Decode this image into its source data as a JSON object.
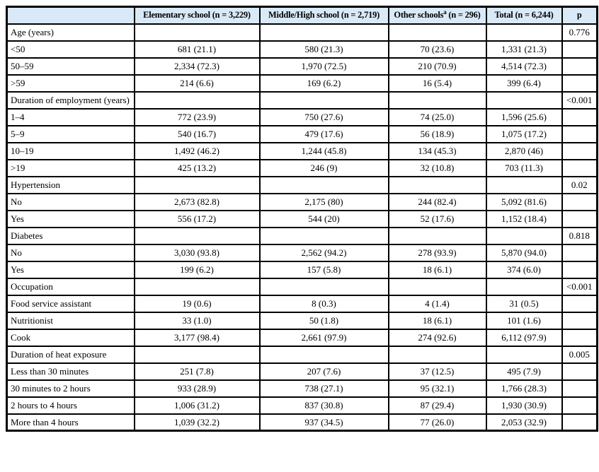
{
  "colors": {
    "header_bg": "#d9e9f8",
    "border_color": "#000000",
    "text_color": "#000000",
    "page_bg": "#ffffff"
  },
  "table": {
    "headers": {
      "empty": "",
      "elementary": "Elementary school (n = 3,229)",
      "middle_high": "Middle/High school (n = 2,719)",
      "other_prefix": "Other schools",
      "other_sup": "a",
      "other_suffix": " (n = 296)",
      "total": "Total (n = 6,244)",
      "p": "p"
    },
    "rows": [
      [
        "Age (years)",
        "",
        "",
        "",
        "",
        "0.776"
      ],
      [
        "<50",
        "681 (21.1)",
        "580 (21.3)",
        "70 (23.6)",
        "1,331 (21.3)",
        ""
      ],
      [
        "50–59",
        "2,334 (72.3)",
        "1,970 (72.5)",
        "210 (70.9)",
        "4,514 (72.3)",
        ""
      ],
      [
        ">59",
        "214 (6.6)",
        "169 (6.2)",
        "16 (5.4)",
        "399 (6.4)",
        ""
      ],
      [
        "Duration of employment (years)",
        "",
        "",
        "",
        "",
        "<0.001"
      ],
      [
        "1–4",
        "772 (23.9)",
        "750 (27.6)",
        "74 (25.0)",
        "1,596 (25.6)",
        ""
      ],
      [
        "5–9",
        "540 (16.7)",
        "479 (17.6)",
        "56 (18.9)",
        "1,075 (17.2)",
        ""
      ],
      [
        "10–19",
        "1,492 (46.2)",
        "1,244 (45.8)",
        "134 (45.3)",
        "2,870 (46)",
        ""
      ],
      [
        ">19",
        "425 (13.2)",
        "246 (9)",
        "32 (10.8)",
        "703 (11.3)",
        ""
      ],
      [
        "Hypertension",
        "",
        "",
        "",
        "",
        "0.02"
      ],
      [
        "No",
        "2,673 (82.8)",
        "2,175 (80)",
        "244 (82.4)",
        "5,092 (81.6)",
        ""
      ],
      [
        "Yes",
        "556 (17.2)",
        "544 (20)",
        "52 (17.6)",
        "1,152 (18.4)",
        ""
      ],
      [
        "Diabetes",
        "",
        "",
        "",
        "",
        "0.818"
      ],
      [
        "No",
        "3,030 (93.8)",
        "2,562 (94.2)",
        "278 (93.9)",
        "5,870 (94.0)",
        ""
      ],
      [
        "Yes",
        "199 (6.2)",
        "157 (5.8)",
        "18 (6.1)",
        "374 (6.0)",
        ""
      ],
      [
        "Occupation",
        "",
        "",
        "",
        "",
        "<0.001"
      ],
      [
        "Food service assistant",
        "19 (0.6)",
        "8 (0.3)",
        "4 (1.4)",
        "31 (0.5)",
        ""
      ],
      [
        "Nutritionist",
        "33 (1.0)",
        "50 (1.8)",
        "18 (6.1)",
        "101 (1.6)",
        ""
      ],
      [
        "Cook",
        "3,177 (98.4)",
        "2,661 (97.9)",
        "274 (92.6)",
        "6,112 (97.9)",
        ""
      ],
      [
        "Duration of heat exposure",
        "",
        "",
        "",
        "",
        "0.005"
      ],
      [
        "Less than 30 minutes",
        "251 (7.8)",
        "207 (7.6)",
        "37 (12.5)",
        "495 (7.9)",
        ""
      ],
      [
        "30 minutes to 2 hours",
        "933 (28.9)",
        "738 (27.1)",
        "95 (32.1)",
        "1,766 (28.3)",
        ""
      ],
      [
        "2 hours to 4 hours",
        "1,006 (31.2)",
        "837 (30.8)",
        "87 (29.4)",
        "1,930 (30.9)",
        ""
      ],
      [
        "More than 4 hours",
        "1,039 (32.2)",
        "937 (34.5)",
        "77 (26.0)",
        "2,053 (32.9)",
        ""
      ]
    ]
  }
}
